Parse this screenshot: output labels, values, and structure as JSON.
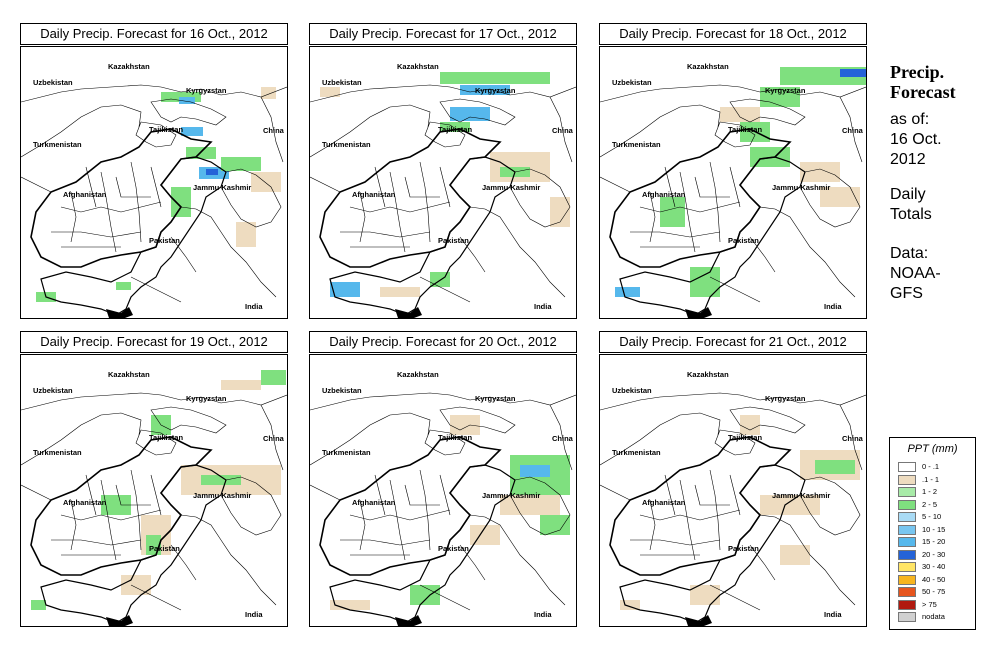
{
  "map_labels": {
    "kazakhstan": "Kazakhstan",
    "uzbekistan": "Uzbekistan",
    "kyrgyzstan": "Kyrgyzstan",
    "tajikistan": "Tajikistan",
    "turkmenistan": "Turkmenistan",
    "china": "China",
    "afghanistan": "Afghanistan",
    "jammu_kashmir": "Jammu Kashmir",
    "pakistan": "Pakistan",
    "india": "India"
  },
  "panels": [
    {
      "title": "Daily Precip. Forecast for  16 Oct., 2012",
      "precip": [
        {
          "x": 140,
          "y": 45,
          "w": 40,
          "h": 10,
          "c": "#7fe07f"
        },
        {
          "x": 158,
          "y": 50,
          "w": 16,
          "h": 7,
          "c": "#56b8ec"
        },
        {
          "x": 160,
          "y": 80,
          "w": 22,
          "h": 9,
          "c": "#56b8ec"
        },
        {
          "x": 178,
          "y": 120,
          "w": 30,
          "h": 12,
          "c": "#56b8ec"
        },
        {
          "x": 185,
          "y": 122,
          "w": 12,
          "h": 6,
          "c": "#2463d8"
        },
        {
          "x": 165,
          "y": 100,
          "w": 30,
          "h": 12,
          "c": "#7fe07f"
        },
        {
          "x": 200,
          "y": 110,
          "w": 40,
          "h": 14,
          "c": "#7fe07f"
        },
        {
          "x": 230,
          "y": 125,
          "w": 30,
          "h": 20,
          "c": "#eedcc0"
        },
        {
          "x": 150,
          "y": 140,
          "w": 20,
          "h": 30,
          "c": "#7fe07f"
        },
        {
          "x": 15,
          "y": 245,
          "w": 20,
          "h": 10,
          "c": "#7fe07f"
        },
        {
          "x": 95,
          "y": 235,
          "w": 15,
          "h": 8,
          "c": "#7fe07f"
        },
        {
          "x": 215,
          "y": 175,
          "w": 20,
          "h": 25,
          "c": "#eedcc0"
        },
        {
          "x": 240,
          "y": 40,
          "w": 15,
          "h": 12,
          "c": "#eedcc0"
        }
      ]
    },
    {
      "title": "Daily Precip. Forecast for  17 Oct., 2012",
      "precip": [
        {
          "x": 130,
          "y": 25,
          "w": 110,
          "h": 12,
          "c": "#7fe07f"
        },
        {
          "x": 150,
          "y": 38,
          "w": 50,
          "h": 10,
          "c": "#56b8ec"
        },
        {
          "x": 140,
          "y": 60,
          "w": 40,
          "h": 14,
          "c": "#56b8ec"
        },
        {
          "x": 130,
          "y": 75,
          "w": 30,
          "h": 10,
          "c": "#7fe07f"
        },
        {
          "x": 180,
          "y": 105,
          "w": 60,
          "h": 30,
          "c": "#eedcc0"
        },
        {
          "x": 190,
          "y": 120,
          "w": 30,
          "h": 10,
          "c": "#7fe07f"
        },
        {
          "x": 20,
          "y": 235,
          "w": 30,
          "h": 15,
          "c": "#56b8ec"
        },
        {
          "x": 120,
          "y": 225,
          "w": 20,
          "h": 15,
          "c": "#7fe07f"
        },
        {
          "x": 70,
          "y": 240,
          "w": 40,
          "h": 10,
          "c": "#eedcc0"
        },
        {
          "x": 240,
          "y": 150,
          "w": 20,
          "h": 30,
          "c": "#eedcc0"
        },
        {
          "x": 10,
          "y": 40,
          "w": 20,
          "h": 10,
          "c": "#eedcc0"
        }
      ]
    },
    {
      "title": "Daily Precip. Forecast for  18 Oct., 2012",
      "precip": [
        {
          "x": 180,
          "y": 20,
          "w": 86,
          "h": 18,
          "c": "#7fe07f"
        },
        {
          "x": 240,
          "y": 22,
          "w": 26,
          "h": 8,
          "c": "#2463d8"
        },
        {
          "x": 160,
          "y": 40,
          "w": 40,
          "h": 20,
          "c": "#7fe07f"
        },
        {
          "x": 120,
          "y": 60,
          "w": 40,
          "h": 15,
          "c": "#eedcc0"
        },
        {
          "x": 140,
          "y": 75,
          "w": 30,
          "h": 20,
          "c": "#7fe07f"
        },
        {
          "x": 150,
          "y": 100,
          "w": 40,
          "h": 20,
          "c": "#7fe07f"
        },
        {
          "x": 200,
          "y": 115,
          "w": 40,
          "h": 20,
          "c": "#eedcc0"
        },
        {
          "x": 90,
          "y": 220,
          "w": 30,
          "h": 30,
          "c": "#7fe07f"
        },
        {
          "x": 15,
          "y": 240,
          "w": 25,
          "h": 10,
          "c": "#56b8ec"
        },
        {
          "x": 60,
          "y": 150,
          "w": 25,
          "h": 30,
          "c": "#7fe07f"
        },
        {
          "x": 220,
          "y": 140,
          "w": 40,
          "h": 20,
          "c": "#eedcc0"
        }
      ]
    },
    {
      "title": "Daily Precip. Forecast for  19 Oct., 2012",
      "precip": [
        {
          "x": 240,
          "y": 15,
          "w": 25,
          "h": 15,
          "c": "#7fe07f"
        },
        {
          "x": 200,
          "y": 25,
          "w": 40,
          "h": 10,
          "c": "#eedcc0"
        },
        {
          "x": 160,
          "y": 110,
          "w": 100,
          "h": 30,
          "c": "#eedcc0"
        },
        {
          "x": 180,
          "y": 120,
          "w": 40,
          "h": 10,
          "c": "#7fe07f"
        },
        {
          "x": 120,
          "y": 160,
          "w": 30,
          "h": 40,
          "c": "#eedcc0"
        },
        {
          "x": 125,
          "y": 180,
          "w": 15,
          "h": 20,
          "c": "#7fe07f"
        },
        {
          "x": 80,
          "y": 140,
          "w": 30,
          "h": 20,
          "c": "#7fe07f"
        },
        {
          "x": 100,
          "y": 220,
          "w": 30,
          "h": 20,
          "c": "#eedcc0"
        },
        {
          "x": 10,
          "y": 245,
          "w": 15,
          "h": 10,
          "c": "#7fe07f"
        },
        {
          "x": 130,
          "y": 60,
          "w": 20,
          "h": 20,
          "c": "#7fe07f"
        }
      ]
    },
    {
      "title": "Daily Precip. Forecast for  20 Oct., 2012",
      "precip": [
        {
          "x": 200,
          "y": 100,
          "w": 60,
          "h": 40,
          "c": "#7fe07f"
        },
        {
          "x": 210,
          "y": 110,
          "w": 30,
          "h": 12,
          "c": "#56b8ec"
        },
        {
          "x": 190,
          "y": 140,
          "w": 60,
          "h": 20,
          "c": "#eedcc0"
        },
        {
          "x": 230,
          "y": 160,
          "w": 30,
          "h": 20,
          "c": "#7fe07f"
        },
        {
          "x": 160,
          "y": 170,
          "w": 30,
          "h": 20,
          "c": "#eedcc0"
        },
        {
          "x": 100,
          "y": 230,
          "w": 30,
          "h": 20,
          "c": "#7fe07f"
        },
        {
          "x": 20,
          "y": 245,
          "w": 40,
          "h": 10,
          "c": "#eedcc0"
        },
        {
          "x": 140,
          "y": 60,
          "w": 30,
          "h": 20,
          "c": "#eedcc0"
        }
      ]
    },
    {
      "title": "Daily Precip. Forecast for  21 Oct., 2012",
      "precip": [
        {
          "x": 200,
          "y": 95,
          "w": 60,
          "h": 30,
          "c": "#eedcc0"
        },
        {
          "x": 215,
          "y": 105,
          "w": 40,
          "h": 14,
          "c": "#7fe07f"
        },
        {
          "x": 160,
          "y": 140,
          "w": 60,
          "h": 20,
          "c": "#eedcc0"
        },
        {
          "x": 180,
          "y": 190,
          "w": 30,
          "h": 20,
          "c": "#eedcc0"
        },
        {
          "x": 90,
          "y": 230,
          "w": 30,
          "h": 20,
          "c": "#eedcc0"
        },
        {
          "x": 140,
          "y": 60,
          "w": 20,
          "h": 20,
          "c": "#eedcc0"
        },
        {
          "x": 20,
          "y": 245,
          "w": 20,
          "h": 10,
          "c": "#eedcc0"
        }
      ]
    }
  ],
  "side": {
    "title_line1": "Precip.",
    "title_line2": "Forecast",
    "asof_line1": "as of:",
    "asof_line2": "16 Oct.",
    "asof_line3": "2012",
    "totals_line1": "Daily",
    "totals_line2": "Totals",
    "data_line1": "Data:",
    "data_line2": "NOAA-",
    "data_line3": "GFS"
  },
  "legend": {
    "title": "PPT (mm)",
    "items": [
      {
        "label": "0 - .1",
        "color": "#ffffff"
      },
      {
        "label": ".1 - 1",
        "color": "#eedcc0"
      },
      {
        "label": "1 - 2",
        "color": "#a8eba8"
      },
      {
        "label": "2 - 5",
        "color": "#7fe07f"
      },
      {
        "label": "5 - 10",
        "color": "#a9dbf5"
      },
      {
        "label": "10 - 15",
        "color": "#78c6f0"
      },
      {
        "label": "15 - 20",
        "color": "#56b8ec"
      },
      {
        "label": "20 - 30",
        "color": "#2463d8"
      },
      {
        "label": "30 - 40",
        "color": "#ffe566"
      },
      {
        "label": "40 - 50",
        "color": "#f7b51f"
      },
      {
        "label": "50 - 75",
        "color": "#e6551e"
      },
      {
        "label": "> 75",
        "color": "#b01a10"
      },
      {
        "label": "nodata",
        "color": "#d0d0d0"
      }
    ]
  }
}
